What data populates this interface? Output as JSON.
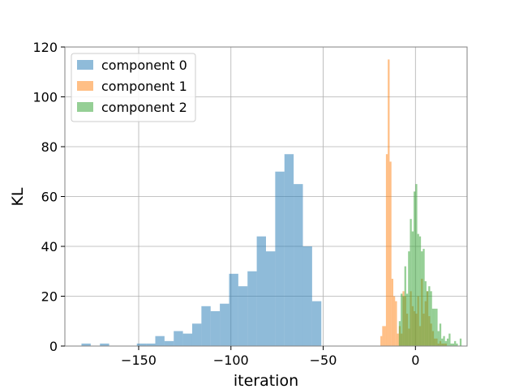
{
  "chart_data": {
    "type": "histogram",
    "xlabel": "iteration",
    "ylabel": "KL",
    "xlim": [
      -190,
      28
    ],
    "ylim": [
      0,
      120
    ],
    "xticks": [
      -150,
      -100,
      -50,
      0
    ],
    "xtick_labels": [
      "−150",
      "−100",
      "−50",
      "0"
    ],
    "yticks": [
      0,
      20,
      40,
      60,
      80,
      100,
      120
    ],
    "ytick_labels": [
      "0",
      "20",
      "40",
      "60",
      "80",
      "100",
      "120"
    ],
    "grid": true,
    "legend_position": "upper-left",
    "series": [
      {
        "name": "component 0",
        "color": "#1f77b4",
        "opacity": 0.5,
        "bins": [
          {
            "x0": -181,
            "x1": -176,
            "count": 1
          },
          {
            "x0": -176,
            "x1": -171,
            "count": 0
          },
          {
            "x0": -171,
            "x1": -166,
            "count": 1
          },
          {
            "x0": -166,
            "x1": -161,
            "count": 0
          },
          {
            "x0": -161,
            "x1": -156,
            "count": 0
          },
          {
            "x0": -156,
            "x1": -151,
            "count": 0
          },
          {
            "x0": -151,
            "x1": -146,
            "count": 1
          },
          {
            "x0": -146,
            "x1": -141,
            "count": 1
          },
          {
            "x0": -141,
            "x1": -136,
            "count": 4
          },
          {
            "x0": -136,
            "x1": -131,
            "count": 2
          },
          {
            "x0": -131,
            "x1": -126,
            "count": 6
          },
          {
            "x0": -126,
            "x1": -121,
            "count": 5
          },
          {
            "x0": -121,
            "x1": -116,
            "count": 9
          },
          {
            "x0": -116,
            "x1": -111,
            "count": 16
          },
          {
            "x0": -111,
            "x1": -106,
            "count": 14
          },
          {
            "x0": -106,
            "x1": -101,
            "count": 17
          },
          {
            "x0": -101,
            "x1": -96,
            "count": 29
          },
          {
            "x0": -96,
            "x1": -91,
            "count": 24
          },
          {
            "x0": -91,
            "x1": -86,
            "count": 30
          },
          {
            "x0": -86,
            "x1": -81,
            "count": 44
          },
          {
            "x0": -81,
            "x1": -76,
            "count": 38
          },
          {
            "x0": -76,
            "x1": -71,
            "count": 70
          },
          {
            "x0": -71,
            "x1": -66,
            "count": 77
          },
          {
            "x0": -66,
            "x1": -61,
            "count": 65
          },
          {
            "x0": -61,
            "x1": -56,
            "count": 40
          },
          {
            "x0": -56,
            "x1": -51,
            "count": 18
          }
        ]
      },
      {
        "name": "component 1",
        "color": "#ff7f0e",
        "opacity": 0.5,
        "bins": [
          {
            "x0": -19,
            "x1": -18,
            "count": 4
          },
          {
            "x0": -18,
            "x1": -17,
            "count": 8
          },
          {
            "x0": -17,
            "x1": -16,
            "count": 8
          },
          {
            "x0": -16,
            "x1": -15,
            "count": 77
          },
          {
            "x0": -15,
            "x1": -14,
            "count": 115
          },
          {
            "x0": -14,
            "x1": -13,
            "count": 74
          },
          {
            "x0": -13,
            "x1": -12,
            "count": 27
          },
          {
            "x0": -12,
            "x1": -11,
            "count": 20
          },
          {
            "x0": -11,
            "x1": -10,
            "count": 18
          },
          {
            "x0": -10,
            "x1": -9,
            "count": 5
          },
          {
            "x0": -9,
            "x1": -8,
            "count": 8
          },
          {
            "x0": -8,
            "x1": -7,
            "count": 5
          },
          {
            "x0": -7,
            "x1": -6,
            "count": 22
          },
          {
            "x0": -6,
            "x1": -5,
            "count": 20
          },
          {
            "x0": -5,
            "x1": -4,
            "count": 13
          },
          {
            "x0": -4,
            "x1": -3,
            "count": 7
          },
          {
            "x0": -3,
            "x1": -2,
            "count": 22
          },
          {
            "x0": -2,
            "x1": -1,
            "count": 16
          },
          {
            "x0": -1,
            "x1": 0,
            "count": 14
          },
          {
            "x0": 0,
            "x1": 1,
            "count": 13
          },
          {
            "x0": 1,
            "x1": 2,
            "count": 20
          },
          {
            "x0": 2,
            "x1": 3,
            "count": 8
          },
          {
            "x0": 3,
            "x1": 4,
            "count": 27
          },
          {
            "x0": 4,
            "x1": 5,
            "count": 13
          },
          {
            "x0": 5,
            "x1": 6,
            "count": 18
          },
          {
            "x0": 6,
            "x1": 7,
            "count": 22
          },
          {
            "x0": 7,
            "x1": 8,
            "count": 12
          },
          {
            "x0": 8,
            "x1": 9,
            "count": 9
          },
          {
            "x0": 9,
            "x1": 10,
            "count": 6
          },
          {
            "x0": 10,
            "x1": 11,
            "count": 3
          },
          {
            "x0": 11,
            "x1": 12,
            "count": 3
          },
          {
            "x0": 12,
            "x1": 13,
            "count": 1
          },
          {
            "x0": 13,
            "x1": 14,
            "count": 2
          },
          {
            "x0": 14,
            "x1": 15,
            "count": 1
          },
          {
            "x0": 15,
            "x1": 16,
            "count": 1
          },
          {
            "x0": 16,
            "x1": 17,
            "count": 1
          }
        ]
      },
      {
        "name": "component 2",
        "color": "#2ca02c",
        "opacity": 0.5,
        "bins": [
          {
            "x0": -9,
            "x1": -8,
            "count": 10
          },
          {
            "x0": -8,
            "x1": -7,
            "count": 21
          },
          {
            "x0": -7,
            "x1": -6,
            "count": 20
          },
          {
            "x0": -6,
            "x1": -5,
            "count": 32
          },
          {
            "x0": -5,
            "x1": -4,
            "count": 21
          },
          {
            "x0": -4,
            "x1": -3,
            "count": 38
          },
          {
            "x0": -3,
            "x1": -2,
            "count": 51
          },
          {
            "x0": -2,
            "x1": -1,
            "count": 46
          },
          {
            "x0": -1,
            "x1": 0,
            "count": 62
          },
          {
            "x0": 0,
            "x1": 1,
            "count": 65
          },
          {
            "x0": 1,
            "x1": 2,
            "count": 45
          },
          {
            "x0": 2,
            "x1": 3,
            "count": 44
          },
          {
            "x0": 3,
            "x1": 4,
            "count": 38
          },
          {
            "x0": 4,
            "x1": 5,
            "count": 39
          },
          {
            "x0": 5,
            "x1": 6,
            "count": 26
          },
          {
            "x0": 6,
            "x1": 7,
            "count": 22
          },
          {
            "x0": 7,
            "x1": 8,
            "count": 24
          },
          {
            "x0": 8,
            "x1": 9,
            "count": 22
          },
          {
            "x0": 9,
            "x1": 10,
            "count": 15
          },
          {
            "x0": 10,
            "x1": 11,
            "count": 15
          },
          {
            "x0": 11,
            "x1": 12,
            "count": 15
          },
          {
            "x0": 12,
            "x1": 13,
            "count": 6
          },
          {
            "x0": 13,
            "x1": 14,
            "count": 9
          },
          {
            "x0": 14,
            "x1": 15,
            "count": 3
          },
          {
            "x0": 15,
            "x1": 16,
            "count": 4
          },
          {
            "x0": 16,
            "x1": 17,
            "count": 2
          },
          {
            "x0": 17,
            "x1": 18,
            "count": 3
          },
          {
            "x0": 18,
            "x1": 19,
            "count": 5
          },
          {
            "x0": 19,
            "x1": 20,
            "count": 1
          },
          {
            "x0": 20,
            "x1": 21,
            "count": 1
          },
          {
            "x0": 21,
            "x1": 22,
            "count": 2
          },
          {
            "x0": 22,
            "x1": 23,
            "count": 1
          },
          {
            "x0": 23,
            "x1": 24,
            "count": 0
          },
          {
            "x0": 24,
            "x1": 25,
            "count": 3
          }
        ]
      }
    ]
  }
}
